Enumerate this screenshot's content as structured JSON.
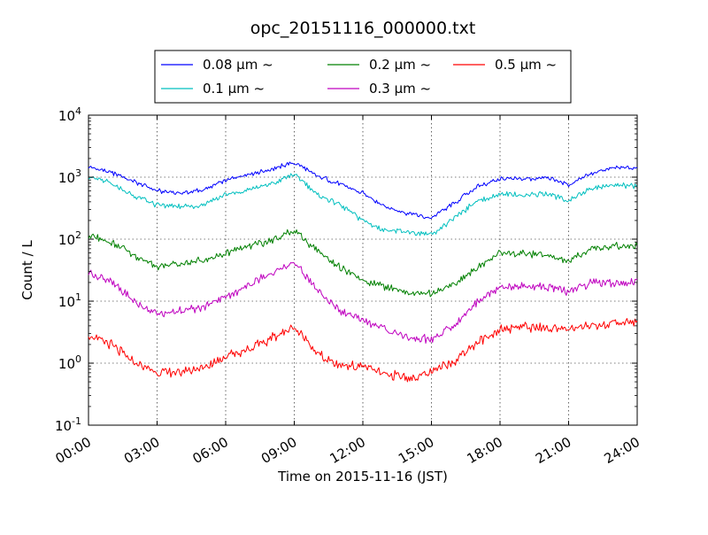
{
  "chart_data": {
    "type": "line",
    "title": "opc_20151116_000000.txt",
    "xlabel": "Time on 2015-11-16 (JST)",
    "ylabel": "Count / L",
    "xlim_hours": [
      0,
      24
    ],
    "ylim": [
      0.1,
      10000
    ],
    "yscale": "log",
    "grid": true,
    "legend_position": "top-center-outside",
    "x_ticks": [
      {
        "label": "00:00",
        "hour": 0
      },
      {
        "label": "03:00",
        "hour": 3
      },
      {
        "label": "06:00",
        "hour": 6
      },
      {
        "label": "09:00",
        "hour": 9
      },
      {
        "label": "12:00",
        "hour": 12
      },
      {
        "label": "15:00",
        "hour": 15
      },
      {
        "label": "18:00",
        "hour": 18
      },
      {
        "label": "21:00",
        "hour": 21
      },
      {
        "label": "24:00",
        "hour": 24
      }
    ],
    "y_ticks": [
      {
        "base": "10",
        "exp": "-1",
        "value": 0.1
      },
      {
        "base": "10",
        "exp": "0",
        "value": 1
      },
      {
        "base": "10",
        "exp": "1",
        "value": 10
      },
      {
        "base": "10",
        "exp": "2",
        "value": 100
      },
      {
        "base": "10",
        "exp": "3",
        "value": 1000
      },
      {
        "base": "10",
        "exp": "4",
        "value": 10000
      }
    ],
    "x_hours": [
      0,
      1,
      2,
      3,
      4,
      5,
      6,
      7,
      8,
      9,
      10,
      11,
      12,
      13,
      14,
      15,
      16,
      17,
      18,
      19,
      20,
      21,
      22,
      23,
      24
    ],
    "series": [
      {
        "name": "0.08 μm ~",
        "color": "#0000ff",
        "values": [
          1500,
          1200,
          850,
          600,
          560,
          620,
          900,
          1100,
          1350,
          1700,
          1050,
          780,
          550,
          330,
          260,
          220,
          380,
          700,
          950,
          920,
          980,
          750,
          1150,
          1450,
          1400
        ]
      },
      {
        "name": "0.1 μm ~",
        "color": "#00bfbf",
        "values": [
          1050,
          800,
          500,
          350,
          330,
          350,
          520,
          620,
          760,
          1150,
          520,
          360,
          200,
          140,
          130,
          115,
          220,
          420,
          520,
          520,
          540,
          420,
          650,
          760,
          720
        ]
      },
      {
        "name": "0.2 μm ~",
        "color": "#008000",
        "values": [
          115,
          90,
          55,
          36,
          40,
          45,
          60,
          75,
          95,
          140,
          65,
          35,
          22,
          17,
          14,
          13,
          18,
          35,
          60,
          58,
          55,
          45,
          70,
          78,
          80
        ]
      },
      {
        "name": "0.3 μm ~",
        "color": "#bf00bf",
        "values": [
          30,
          20,
          10,
          6,
          7,
          8,
          12,
          18,
          28,
          42,
          15,
          7,
          5,
          3.5,
          2.6,
          2.4,
          4,
          10,
          17,
          17,
          17,
          14,
          20,
          20,
          20
        ]
      },
      {
        "name": "0.5 μm ~",
        "color": "#ff0000",
        "values": [
          2.8,
          2.0,
          1.0,
          0.7,
          0.7,
          0.8,
          1.3,
          1.7,
          2.5,
          4.0,
          1.4,
          0.9,
          0.9,
          0.65,
          0.6,
          0.7,
          1.1,
          2.2,
          3.5,
          4.0,
          3.6,
          3.5,
          4.0,
          4.4,
          4.7
        ]
      }
    ]
  },
  "legend": {
    "items": [
      {
        "label": "0.08 μm ~",
        "color": "#0000ff"
      },
      {
        "label": "0.1 μm ~",
        "color": "#00bfbf"
      },
      {
        "label": "0.2 μm ~",
        "color": "#008000"
      },
      {
        "label": "0.3 μm ~",
        "color": "#bf00bf"
      },
      {
        "label": "0.5 μm ~",
        "color": "#ff0000"
      }
    ]
  }
}
